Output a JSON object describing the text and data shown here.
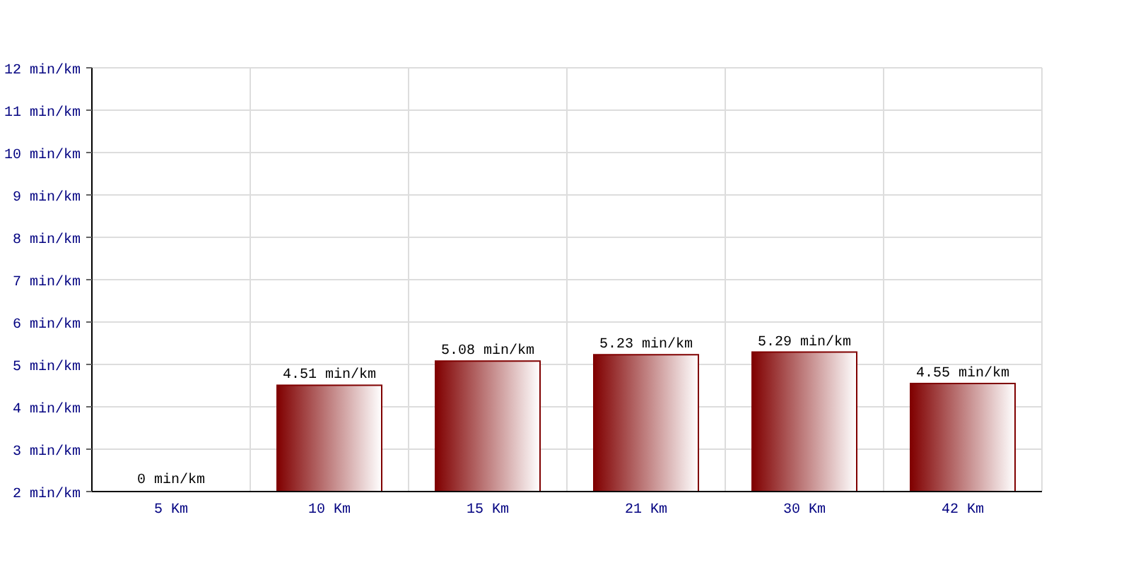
{
  "chart_data": {
    "type": "bar",
    "categories": [
      "5 Km",
      "10 Km",
      "15 Km",
      "21 Km",
      "30 Km",
      "42 Km"
    ],
    "values": [
      null,
      4.51,
      5.08,
      5.23,
      5.29,
      4.55
    ],
    "value_labels": [
      null,
      "4.51 min/km",
      "5.08 min/km",
      "5.23 min/km",
      "5.29 min/km",
      "4.55 min/km"
    ],
    "annotations": [
      "0 min/km"
    ],
    "color": "#800000",
    "ylim": [
      2,
      12
    ],
    "yticks": [
      {
        "value": 2,
        "label": "2 min/km"
      },
      {
        "value": 3,
        "label": "3 min/km"
      },
      {
        "value": 4,
        "label": "4 min/km"
      },
      {
        "value": 5,
        "label": "5 min/km"
      },
      {
        "value": 6,
        "label": "6 min/km"
      },
      {
        "value": 7,
        "label": "7 min/km"
      },
      {
        "value": 8,
        "label": "8 min/km"
      },
      {
        "value": 9,
        "label": "9 min/km"
      },
      {
        "value": 10,
        "label": "10 min/km"
      },
      {
        "value": 11,
        "label": "11 min/km"
      },
      {
        "value": 12,
        "label": "12 min/km"
      }
    ],
    "grid": true
  }
}
